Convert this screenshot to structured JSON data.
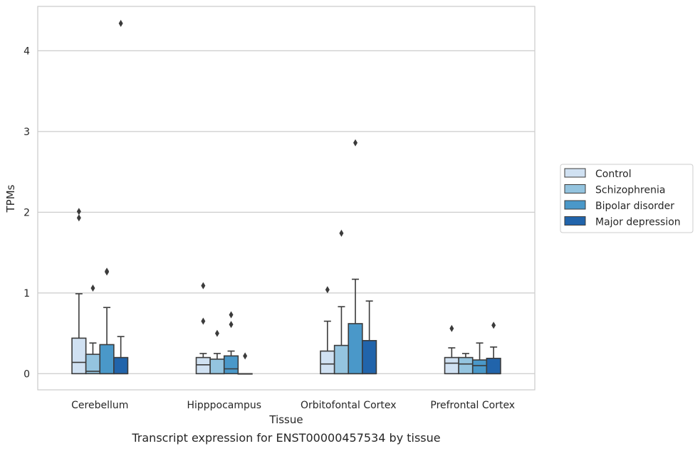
{
  "chart_data": {
    "type": "box",
    "title": "",
    "caption": "Transcript expression for ENST00000457534 by tissue",
    "xlabel": "Tissue",
    "ylabel": "TPMs",
    "ylim": [
      -0.2,
      4.55
    ],
    "yticks": [
      0,
      1,
      2,
      3,
      4
    ],
    "grid": "horizontal",
    "legend_position": "right",
    "categories": [
      "Cerebellum",
      "Hipppocampus",
      "Orbitofontal Cortex",
      "Prefrontal Cortex"
    ],
    "series": [
      {
        "name": "Control",
        "color": "#d0e1f2",
        "boxes": [
          {
            "min": 0,
            "q1": 0,
            "median": 0.14,
            "q3": 0.44,
            "max": 0.99,
            "outliers": [
              1.93,
              2.01
            ]
          },
          {
            "min": 0,
            "q1": 0,
            "median": 0.11,
            "q3": 0.2,
            "max": 0.25,
            "outliers": [
              0.65,
              1.09
            ]
          },
          {
            "min": 0,
            "q1": 0,
            "median": 0.12,
            "q3": 0.28,
            "max": 0.65,
            "outliers": [
              1.04
            ]
          },
          {
            "min": 0,
            "q1": 0,
            "median": 0.13,
            "q3": 0.2,
            "max": 0.32,
            "outliers": [
              0.56
            ]
          }
        ]
      },
      {
        "name": "Schizophrenia",
        "color": "#94c4df",
        "boxes": [
          {
            "min": 0,
            "q1": 0,
            "median": 0.03,
            "q3": 0.24,
            "max": 0.38,
            "outliers": [
              1.06
            ]
          },
          {
            "min": 0,
            "q1": 0,
            "median": 0,
            "q3": 0.18,
            "max": 0.25,
            "outliers": [
              0.5
            ]
          },
          {
            "min": 0,
            "q1": 0,
            "median": 0,
            "q3": 0.35,
            "max": 0.83,
            "outliers": [
              1.74
            ]
          },
          {
            "min": 0,
            "q1": 0,
            "median": 0.12,
            "q3": 0.2,
            "max": 0.25,
            "outliers": []
          }
        ]
      },
      {
        "name": "Bipolar disorder",
        "color": "#4a98c9",
        "boxes": [
          {
            "min": 0,
            "q1": 0,
            "median": 0,
            "q3": 0.36,
            "max": 0.82,
            "outliers": [
              1.26,
              1.27
            ]
          },
          {
            "min": 0,
            "q1": 0,
            "median": 0.06,
            "q3": 0.22,
            "max": 0.28,
            "outliers": [
              0.61,
              0.73
            ]
          },
          {
            "min": 0,
            "q1": 0,
            "median": 0,
            "q3": 0.62,
            "max": 1.17,
            "outliers": [
              2.86
            ]
          },
          {
            "min": 0,
            "q1": 0,
            "median": 0.1,
            "q3": 0.17,
            "max": 0.38,
            "outliers": []
          }
        ]
      },
      {
        "name": "Major depression",
        "color": "#2164ab",
        "boxes": [
          {
            "min": 0,
            "q1": 0,
            "median": 0,
            "q3": 0.2,
            "max": 0.46,
            "outliers": [
              4.34
            ]
          },
          {
            "min": 0,
            "q1": 0,
            "median": 0,
            "q3": 0,
            "max": 0,
            "outliers": [
              0.22
            ]
          },
          {
            "min": 0,
            "q1": 0,
            "median": 0,
            "q3": 0.41,
            "max": 0.9,
            "outliers": []
          },
          {
            "min": 0,
            "q1": 0,
            "median": 0,
            "q3": 0.19,
            "max": 0.33,
            "outliers": [
              0.6
            ]
          }
        ]
      }
    ]
  }
}
